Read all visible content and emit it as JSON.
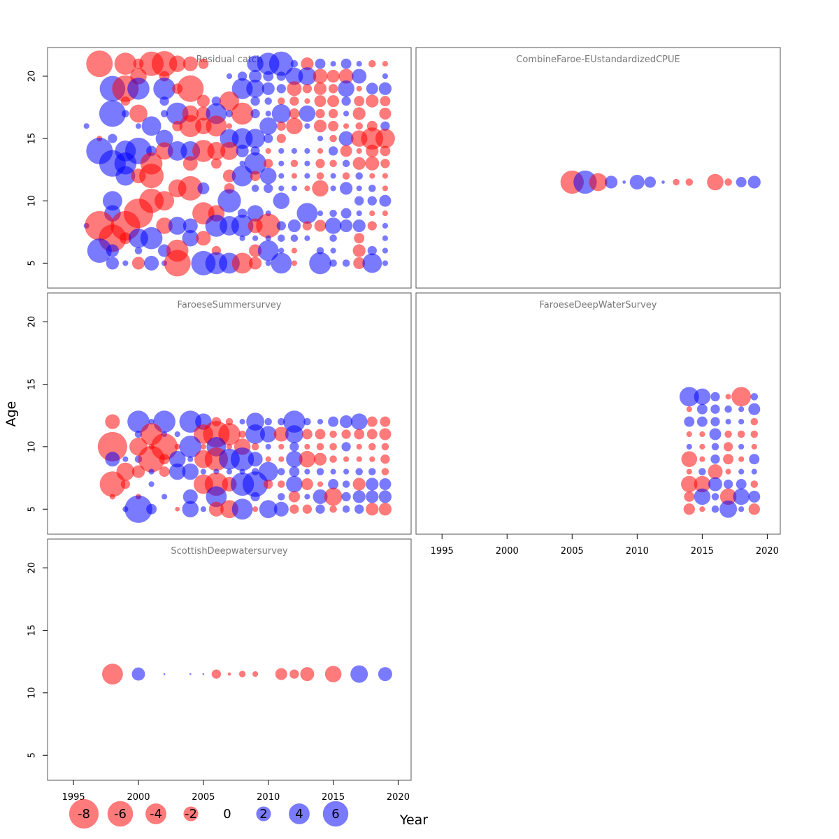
{
  "figure": {
    "xlabel": "Year",
    "ylabel": "Age",
    "colors": {
      "negative": "#ff0000",
      "positive": "#0000ff",
      "alpha": 0.52
    }
  },
  "chart_data": {
    "type": "scatter",
    "subtype": "bubble",
    "xlim": [
      1993,
      2021
    ],
    "ylim": [
      3,
      22.3
    ],
    "x_ticks": [
      1995,
      2000,
      2005,
      2010,
      2015,
      2020
    ],
    "y_ticks": [
      5,
      10,
      15,
      20
    ],
    "bubble_area_proportional_to_abs_residual": true,
    "legend": {
      "position": "bottom-left",
      "entries": [
        "-8",
        "-6",
        "-4",
        "-2",
        "0",
        "2",
        "4",
        "6"
      ],
      "values": [
        -8,
        -6,
        -4,
        -2,
        0,
        2,
        4,
        6
      ]
    },
    "panels": [
      {
        "title": "Residual catch",
        "grid": {
          "years": [
            1996,
            1997,
            1998,
            1999,
            2000,
            2001,
            2002,
            2003,
            2004,
            2005,
            2006,
            2007,
            2008,
            2009,
            2010,
            2011,
            2012,
            2013,
            2014,
            2015,
            2016,
            2017,
            2018,
            2019
          ],
          "ages": [
            21,
            20,
            19,
            18,
            17,
            16,
            15,
            14,
            13,
            12,
            11,
            10,
            9,
            8,
            7,
            6,
            5
          ],
          "rows": [
            [
              0,
              -6.5,
              0,
              -4.5,
              -1,
              -5.5,
              -6,
              -2.5,
              -2,
              -1,
              0,
              0,
              0,
              2.5,
              4.5,
              5.5,
              0.5,
              -1.5,
              1,
              0.3,
              1,
              0.3,
              -0.5,
              -0.3
            ],
            [
              0,
              0,
              0,
              0,
              -2.5,
              0,
              -1,
              0,
              0,
              0,
              0,
              0.3,
              0.8,
              1.5,
              1,
              0.8,
              2.8,
              3,
              -2,
              -1.5,
              -2,
              2,
              0,
              0.3
            ],
            [
              0,
              0,
              6,
              -6.5,
              4.5,
              0,
              4.5,
              -1,
              -6.5,
              0,
              0,
              0,
              4,
              3,
              1.5,
              0.8,
              -2,
              -0.8,
              -1.5,
              -0.8,
              2.5,
              -0.3,
              1.3,
              1.5
            ],
            [
              0,
              0,
              0,
              -0.8,
              0,
              0,
              0.8,
              0,
              0,
              -1.5,
              0.8,
              -3.5,
              0,
              0.8,
              0.5,
              -0.5,
              -0.8,
              -0.3,
              -1.3,
              -1.3,
              0.8,
              -1,
              -1.5,
              -1
            ],
            [
              0,
              0,
              6.5,
              0.5,
              -3,
              0,
              0.5,
              4.5,
              -2.5,
              -1.8,
              4,
              0.5,
              -4.5,
              0.8,
              0.3,
              3.3,
              -1,
              2.5,
              -0.8,
              -0.8,
              0.3,
              -1.5,
              0,
              -1.3
            ],
            [
              0.3,
              0,
              0,
              0,
              0.3,
              3.5,
              0,
              -1,
              -4.5,
              -2.5,
              -4,
              -0.3,
              0,
              0,
              2.8,
              -0.8,
              -2.5,
              0.3,
              -1.5,
              -1,
              -0.3,
              -0.5,
              -1,
              0.8
            ],
            [
              0,
              -0.3,
              0.8,
              0,
              0,
              0,
              2.8,
              0,
              0,
              0,
              0,
              3.3,
              4,
              3.5,
              0.8,
              -0.8,
              0,
              0,
              0.3,
              -0.5,
              2,
              -2.5,
              -4.5,
              -3.5
            ],
            [
              0,
              6.5,
              0,
              4,
              6.5,
              1,
              -2.8,
              3.5,
              3.5,
              -4.5,
              -3,
              -3,
              1.5,
              0.8,
              -0.3,
              0.3,
              0.3,
              0.3,
              -0.3,
              0.8,
              -1.3,
              -0.3,
              -1.5,
              -1
            ],
            [
              0,
              0,
              6.5,
              4.5,
              0,
              -4.5,
              0,
              0,
              -2,
              0,
              -1,
              0,
              0.3,
              4.5,
              -0.8,
              0.3,
              -0.5,
              0.3,
              -0.8,
              -0.5,
              0.5,
              -1.5,
              -1.8,
              -0.8
            ],
            [
              0,
              0,
              0,
              3.5,
              -2,
              -5.5,
              0,
              0,
              0,
              0,
              0,
              -1.5,
              4,
              -1,
              2.5,
              0.3,
              -0.3,
              0.3,
              -0.5,
              0.3,
              -0.5,
              0.5,
              -0.3,
              -0.3
            ],
            [
              0,
              0,
              0,
              0,
              0,
              0,
              0,
              -3,
              -5.5,
              1.3,
              0,
              -1,
              0,
              0.5,
              0.8,
              0.3,
              0.3,
              -0.3,
              -2.5,
              0.3,
              1.5,
              0.3,
              0.5,
              -0.3
            ],
            [
              0,
              0,
              3.5,
              0,
              0,
              -5.5,
              -3.5,
              0,
              0,
              0,
              0,
              5,
              0,
              0,
              0,
              2.5,
              0,
              0,
              0,
              0,
              0,
              0.8,
              0.8,
              1.3
            ],
            [
              0,
              0,
              2.5,
              0,
              -8,
              0,
              0,
              0,
              0,
              -4.5,
              -2.5,
              0,
              0.8,
              2.5,
              0.3,
              0,
              0,
              4,
              0.3,
              0.5,
              1,
              0.3,
              -0.3,
              -0.3
            ],
            [
              0.3,
              -8,
              0,
              -8,
              0,
              0,
              -2.5,
              3,
              2,
              0,
              4.5,
              3.5,
              4.5,
              -2,
              -5.5,
              0.8,
              1.5,
              -0.8,
              -1.3,
              2.5,
              1.5,
              1.5,
              -0.8,
              0.3
            ],
            [
              0,
              0,
              -7,
              -1.3,
              3.5,
              4.5,
              0,
              0,
              2.5,
              -2,
              0,
              0,
              0.3,
              0.3,
              0.3,
              0.5,
              0.5,
              0.3,
              0,
              0.5,
              0,
              -1,
              0,
              0.3
            ],
            [
              0,
              5.5,
              1.5,
              0,
              0.5,
              0,
              1.5,
              -4.5,
              0,
              0,
              -0.8,
              0,
              0,
              -1.5,
              4,
              0.3,
              -0.3,
              0,
              0.5,
              0.3,
              0,
              -1.5,
              0.8,
              0.3
            ],
            [
              0,
              0,
              1.5,
              0.3,
              -1.5,
              2,
              0.3,
              -6.5,
              0,
              5.5,
              4.5,
              4,
              -4,
              -1.5,
              0.3,
              4,
              -0.3,
              0,
              4.5,
              0.5,
              0.5,
              -1.3,
              3.5,
              0.3
            ]
          ]
        }
      },
      {
        "title": "CombineFaroe-EUstandardizedCPUE",
        "grid": {
          "years": [
            2005,
            2006,
            2007,
            2008,
            2009,
            2010,
            2011,
            2012,
            2013,
            2014,
            2015,
            2016,
            2017,
            2018,
            2019
          ],
          "ages": [
            11.5
          ],
          "rows": [
            [
              -5,
              5,
              -3,
              1.5,
              0.1,
              2,
              1.2,
              0.1,
              -0.4,
              -0.5,
              0,
              -2.5,
              -0.5,
              1,
              1.5
            ]
          ]
        }
      },
      {
        "title": "FaroeseSummersurvey",
        "grid": {
          "years": [
            1998,
            1999,
            2000,
            2001,
            2002,
            2003,
            2004,
            2005,
            2006,
            2007,
            2008,
            2009,
            2010,
            2011,
            2012,
            2013,
            2014,
            2015,
            2016,
            2017,
            2018,
            2019
          ],
          "ages": [
            12,
            11,
            10,
            9,
            8,
            7,
            6,
            5
          ],
          "rows": [
            [
              -2,
              0,
              4.5,
              0.3,
              4.5,
              0,
              4.5,
              2.5,
              -0.8,
              -0.5,
              0.3,
              3,
              0.5,
              0.5,
              4.5,
              0.5,
              0.3,
              1,
              1.5,
              2.5,
              -1,
              -1
            ],
            [
              0,
              0,
              0.5,
              -4.5,
              0.3,
              0.3,
              0,
              -3.5,
              -6.5,
              -4.5,
              -0.5,
              3.5,
              2.5,
              -2,
              3,
              -1,
              -1,
              -0.5,
              -0.8,
              -1,
              -1,
              -1.3
            ],
            [
              -8,
              0,
              -3,
              -0.3,
              -6.5,
              -0.3,
              4.5,
              -0.3,
              3.5,
              -0.3,
              -2.5,
              -0.5,
              0.3,
              -0.3,
              0.8,
              -0.3,
              -0.5,
              -0.5,
              0.8,
              -0.3,
              -0.5,
              -0.5
            ],
            [
              2,
              0.3,
              0.5,
              -6.5,
              -1,
              2.5,
              0.3,
              -3,
              -5,
              4,
              5,
              2,
              -0.3,
              -0.3,
              2.5,
              -2.5,
              -1.5,
              -0.5,
              -0.3,
              -0.3,
              -0.3,
              -0.8
            ],
            [
              0,
              -3,
              -1.5,
              0.3,
              -1,
              2.5,
              2.5,
              0.3,
              0.3,
              0.3,
              0.3,
              0.5,
              3.5,
              0.5,
              1,
              0.3,
              0.5,
              0.3,
              0.3,
              0.5,
              0.5,
              -0.5
            ],
            [
              -6,
              -0.8,
              0,
              0.3,
              0,
              0,
              0,
              -3.5,
              -5,
              -2,
              5,
              6,
              -0.8,
              -0.5,
              2.5,
              -1.3,
              -0.3,
              1,
              0.5,
              -1.5,
              1.5,
              1.3
            ],
            [
              -0.3,
              0,
              -0.3,
              0,
              0.3,
              0,
              2,
              0,
              4,
              0,
              0,
              0.8,
              0,
              0.5,
              -1.2,
              0.3,
              2,
              -3,
              0.8,
              1.5,
              1.5,
              1.5
            ],
            [
              0,
              0.3,
              7,
              1,
              0,
              -0.2,
              2.5,
              0.3,
              -2,
              -3,
              4,
              -0.3,
              3,
              2,
              -0.8,
              -0.8,
              0.8,
              -0.5,
              0.5,
              0.8,
              -1.5,
              -1.5
            ]
          ]
        }
      },
      {
        "title": "FaroeseDeepWaterSurvey",
        "grid": {
          "years": [
            2014,
            2015,
            2016,
            2017,
            2018,
            2019
          ],
          "ages": [
            14,
            13,
            12,
            11,
            10,
            9,
            8,
            7,
            6,
            5
          ],
          "rows": [
            [
              3.5,
              2.5,
              0.8,
              -0.3,
              -3.5,
              0.5
            ],
            [
              -0.3,
              1,
              0.8,
              0.5,
              0.3,
              1.3
            ],
            [
              1,
              1,
              0.8,
              0.3,
              0.3,
              -0.5
            ],
            [
              -0.3,
              -0.3,
              1.3,
              -0.5,
              -0.5,
              -0.5
            ],
            [
              0.3,
              -0.3,
              0.5,
              -0.8,
              0.3,
              -0.3
            ],
            [
              -2.3,
              -0.3,
              0.8,
              -1,
              -0.3,
              1
            ],
            [
              -0.3,
              0.5,
              -2,
              -0.3,
              0.3,
              0.3
            ],
            [
              -2.5,
              -2.5,
              1.8,
              0.8,
              1,
              -0.5
            ],
            [
              -1,
              2.5,
              0.5,
              -2.5,
              2.5,
              1.3
            ],
            [
              -1.2,
              -0.3,
              0.5,
              2.8,
              0.3,
              -1.2
            ]
          ]
        }
      },
      {
        "title": "ScottishDeepwatersurvey",
        "grid": {
          "years": [
            1998,
            2000,
            2002,
            2004,
            2005,
            2006,
            2007,
            2008,
            2009,
            2011,
            2012,
            2013,
            2015,
            2017,
            2019
          ],
          "ages": [
            11.5
          ],
          "rows": [
            [
              -4,
              1.6,
              0.03,
              0.03,
              0.03,
              -0.8,
              -0.1,
              -0.4,
              -0.3,
              -1.3,
              -0.8,
              -1.8,
              -2.5,
              2.8,
              1.8
            ]
          ]
        }
      }
    ]
  }
}
